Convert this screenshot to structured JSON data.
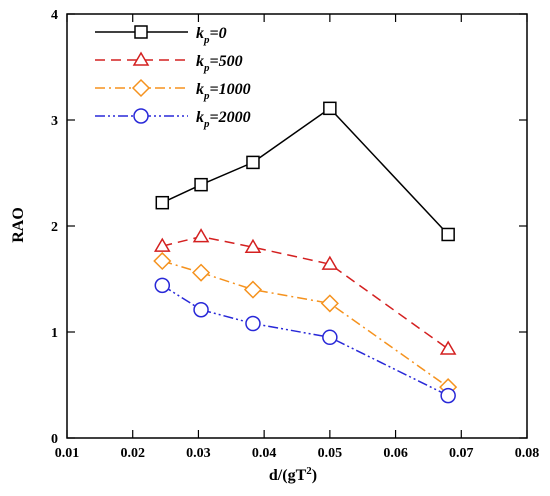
{
  "chart_data": {
    "type": "line",
    "xlabel_parts": [
      "d/(gT",
      "2",
      ")"
    ],
    "ylabel": "RAO",
    "xlim": [
      0.01,
      0.08
    ],
    "ylim": [
      0,
      4
    ],
    "x_ticks": [
      "0.01",
      "0.02",
      "0.03",
      "0.04",
      "0.05",
      "0.06",
      "0.07",
      "0.08"
    ],
    "y_ticks": [
      "0",
      "1",
      "2",
      "3",
      "4"
    ],
    "grid": false,
    "legend_position": "top-left",
    "x": [
      0.0245,
      0.0304,
      0.0383,
      0.05,
      0.068
    ],
    "series": [
      {
        "name_parts": [
          "k",
          "p",
          "=0"
        ],
        "values": [
          2.22,
          2.39,
          2.6,
          3.11,
          1.92
        ],
        "color": "#000000",
        "dash": "none",
        "marker": "square"
      },
      {
        "name_parts": [
          "k",
          "p",
          "=500"
        ],
        "values": [
          1.81,
          1.9,
          1.8,
          1.64,
          0.84
        ],
        "color": "#d42020",
        "dash": "dashed",
        "marker": "triangle"
      },
      {
        "name_parts": [
          "k",
          "p",
          "=1000"
        ],
        "values": [
          1.67,
          1.56,
          1.4,
          1.27,
          0.48
        ],
        "color": "#f5921e",
        "dash": "dashdot",
        "marker": "diamond"
      },
      {
        "name_parts": [
          "k",
          "p",
          "=2000"
        ],
        "values": [
          1.44,
          1.21,
          1.08,
          0.95,
          0.4
        ],
        "color": "#2828d8",
        "dash": "dashdotdot",
        "marker": "circle"
      }
    ]
  }
}
